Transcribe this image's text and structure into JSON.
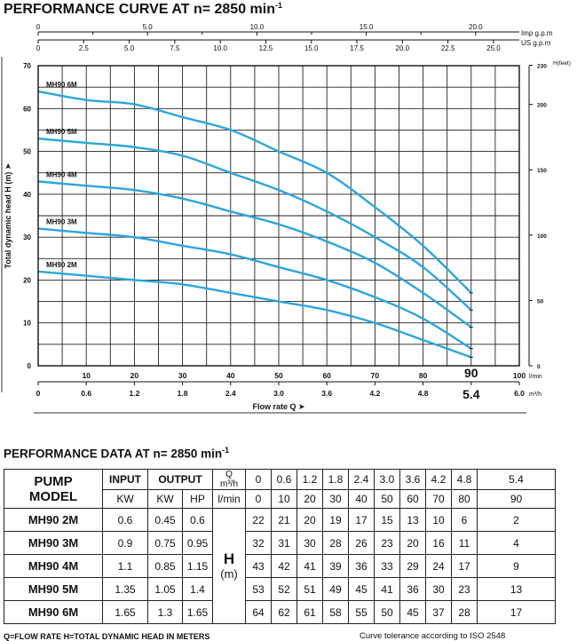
{
  "chart_data": {
    "type": "line",
    "title": "PERFORMANCE CURVE AT n= 2850 min",
    "title_sup": "-1",
    "ylabel": "Total dynamic head H (m)",
    "y_arrow": "➤",
    "xlabel": "Flow rate Q",
    "x_arrow": "➤",
    "ylim": [
      0,
      70
    ],
    "y_ticks": [
      "0",
      "10",
      "20",
      "30",
      "40",
      "50",
      "60",
      "70"
    ],
    "x_lmin_unit": "l/min",
    "x_lmin_ticks": [
      "10",
      "20",
      "30",
      "40",
      "50",
      "60",
      "70",
      "80",
      "90",
      "100"
    ],
    "x_m3h_unit": "m³/h",
    "x_m3h_ticks": [
      "0",
      "0.6",
      "1.2",
      "1.8",
      "2.4",
      "3.0",
      "3.6",
      "4.2",
      "4.8",
      "5.4",
      "6.0"
    ],
    "top_imp_label": "Imp g.p.m",
    "top_imp_ticks": [
      "0",
      "5.0",
      "10.0",
      "15.0",
      "20.0"
    ],
    "top_us_label": "US  g.p.m",
    "top_us_ticks": [
      "0",
      "2.5",
      "5.0",
      "7.5",
      "10.0",
      "12.5",
      "15.0",
      "17.5",
      "20.0",
      "22.5",
      "25.0"
    ],
    "right_label": "H(feet)",
    "right_ticks": [
      "0",
      "50",
      "100",
      "150",
      "200",
      "230"
    ],
    "grid": true,
    "curve_color": "#2ba6dc",
    "x": [
      0,
      10,
      20,
      30,
      40,
      50,
      60,
      70,
      80,
      90
    ],
    "series": [
      {
        "name": "MH90 2M",
        "values": [
          22,
          21,
          20,
          19,
          17,
          15,
          13,
          10,
          6,
          2
        ]
      },
      {
        "name": "MH90 3M",
        "values": [
          32,
          31,
          30,
          28,
          26,
          23,
          20,
          16,
          11,
          4
        ]
      },
      {
        "name": "MH90 4M",
        "values": [
          43,
          42,
          41,
          39,
          36,
          33,
          29,
          24,
          17,
          9
        ]
      },
      {
        "name": "MH90 5M",
        "values": [
          53,
          52,
          51,
          49,
          45,
          41,
          36,
          30,
          23,
          13
        ]
      },
      {
        "name": "MH90 6M",
        "values": [
          64,
          62,
          61,
          58,
          55,
          50,
          45,
          37,
          28,
          17
        ]
      }
    ]
  },
  "table": {
    "title": "PERFORMANCE DATA AT n= 2850 min",
    "title_sup": "-1",
    "pump_label": "PUMP",
    "model_label": "MODEL",
    "input_label": "INPUT",
    "output_label": "OUTPUT",
    "input_unit": "KW",
    "output_kw_unit": "KW",
    "output_hp_unit": "HP",
    "q_label": "Q",
    "q_unit_m3h": "m³/h",
    "q_unit_lmin": "l/min",
    "q_m3h": [
      "0",
      "0.6",
      "1.2",
      "1.8",
      "2.4",
      "3.0",
      "3.6",
      "4.2",
      "4.8",
      "5.4"
    ],
    "q_lmin": [
      "0",
      "10",
      "20",
      "30",
      "40",
      "50",
      "60",
      "70",
      "80",
      "90"
    ],
    "h_label": "H",
    "h_unit": "(m)",
    "rows": [
      {
        "model": "MH90   2M",
        "input_kw": "0.6",
        "output_kw": "0.45",
        "output_hp": "0.6",
        "heads": [
          "22",
          "21",
          "20",
          "19",
          "17",
          "15",
          "13",
          "10",
          "6",
          "2"
        ]
      },
      {
        "model": "MH90   3M",
        "input_kw": "0.9",
        "output_kw": "0.75",
        "output_hp": "0.95",
        "heads": [
          "32",
          "31",
          "30",
          "28",
          "26",
          "23",
          "20",
          "16",
          "11",
          "4"
        ]
      },
      {
        "model": "MH90   4M",
        "input_kw": "1.1",
        "output_kw": "0.85",
        "output_hp": "1.15",
        "heads": [
          "43",
          "42",
          "41",
          "39",
          "36",
          "33",
          "29",
          "24",
          "17",
          "9"
        ]
      },
      {
        "model": "MH90   5M",
        "input_kw": "1.35",
        "output_kw": "1.05",
        "output_hp": "1.4",
        "heads": [
          "53",
          "52",
          "51",
          "49",
          "45",
          "41",
          "36",
          "30",
          "23",
          "13"
        ]
      },
      {
        "model": "MH90   6M",
        "input_kw": "1.65",
        "output_kw": "1.3",
        "output_hp": "1.65",
        "heads": [
          "64",
          "62",
          "61",
          "58",
          "55",
          "50",
          "45",
          "37",
          "28",
          "17"
        ]
      }
    ]
  },
  "footnotes": {
    "left": "Q=FLOW RATE  H=TOTAL DYNAMIC HEAD IN METERS",
    "right": "Curve tolerance according to ISO 2548"
  }
}
